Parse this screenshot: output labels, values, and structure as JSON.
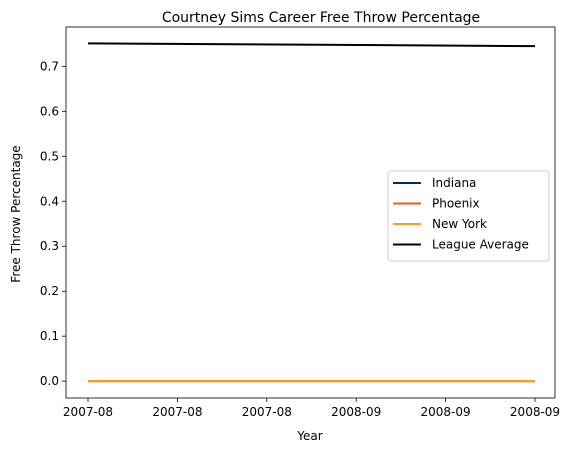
{
  "chart_data": {
    "type": "line",
    "title": "Courtney Sims Career Free Throw Percentage",
    "xlabel": "Year",
    "ylabel": "Free Throw Percentage",
    "x_tick_labels": [
      "2007-08",
      "2007-08",
      "2007-08",
      "2008-09",
      "2008-09",
      "2008-09"
    ],
    "x_range": [
      0,
      1
    ],
    "ylim": [
      -0.0375,
      0.7875
    ],
    "y_ticks": [
      0.0,
      0.1,
      0.2,
      0.3,
      0.4,
      0.5,
      0.6,
      0.7
    ],
    "y_tick_labels": [
      "0.0",
      "0.1",
      "0.2",
      "0.3",
      "0.4",
      "0.5",
      "0.6",
      "0.7"
    ],
    "grid": false,
    "legend_position": "center-right",
    "series": [
      {
        "name": "Indiana",
        "color": "#002d62",
        "x": [
          0,
          1
        ],
        "values": [
          0.0,
          0.0
        ]
      },
      {
        "name": "Phoenix",
        "color": "#e56020",
        "x": [
          0,
          1
        ],
        "values": [
          0.0,
          0.0
        ]
      },
      {
        "name": "New York",
        "color": "#f9a01b",
        "x": [
          0,
          1
        ],
        "values": [
          0.0,
          0.0
        ]
      },
      {
        "name": "League Average",
        "color": "#000000",
        "x": [
          0,
          1
        ],
        "values": [
          0.751,
          0.745
        ]
      }
    ]
  }
}
